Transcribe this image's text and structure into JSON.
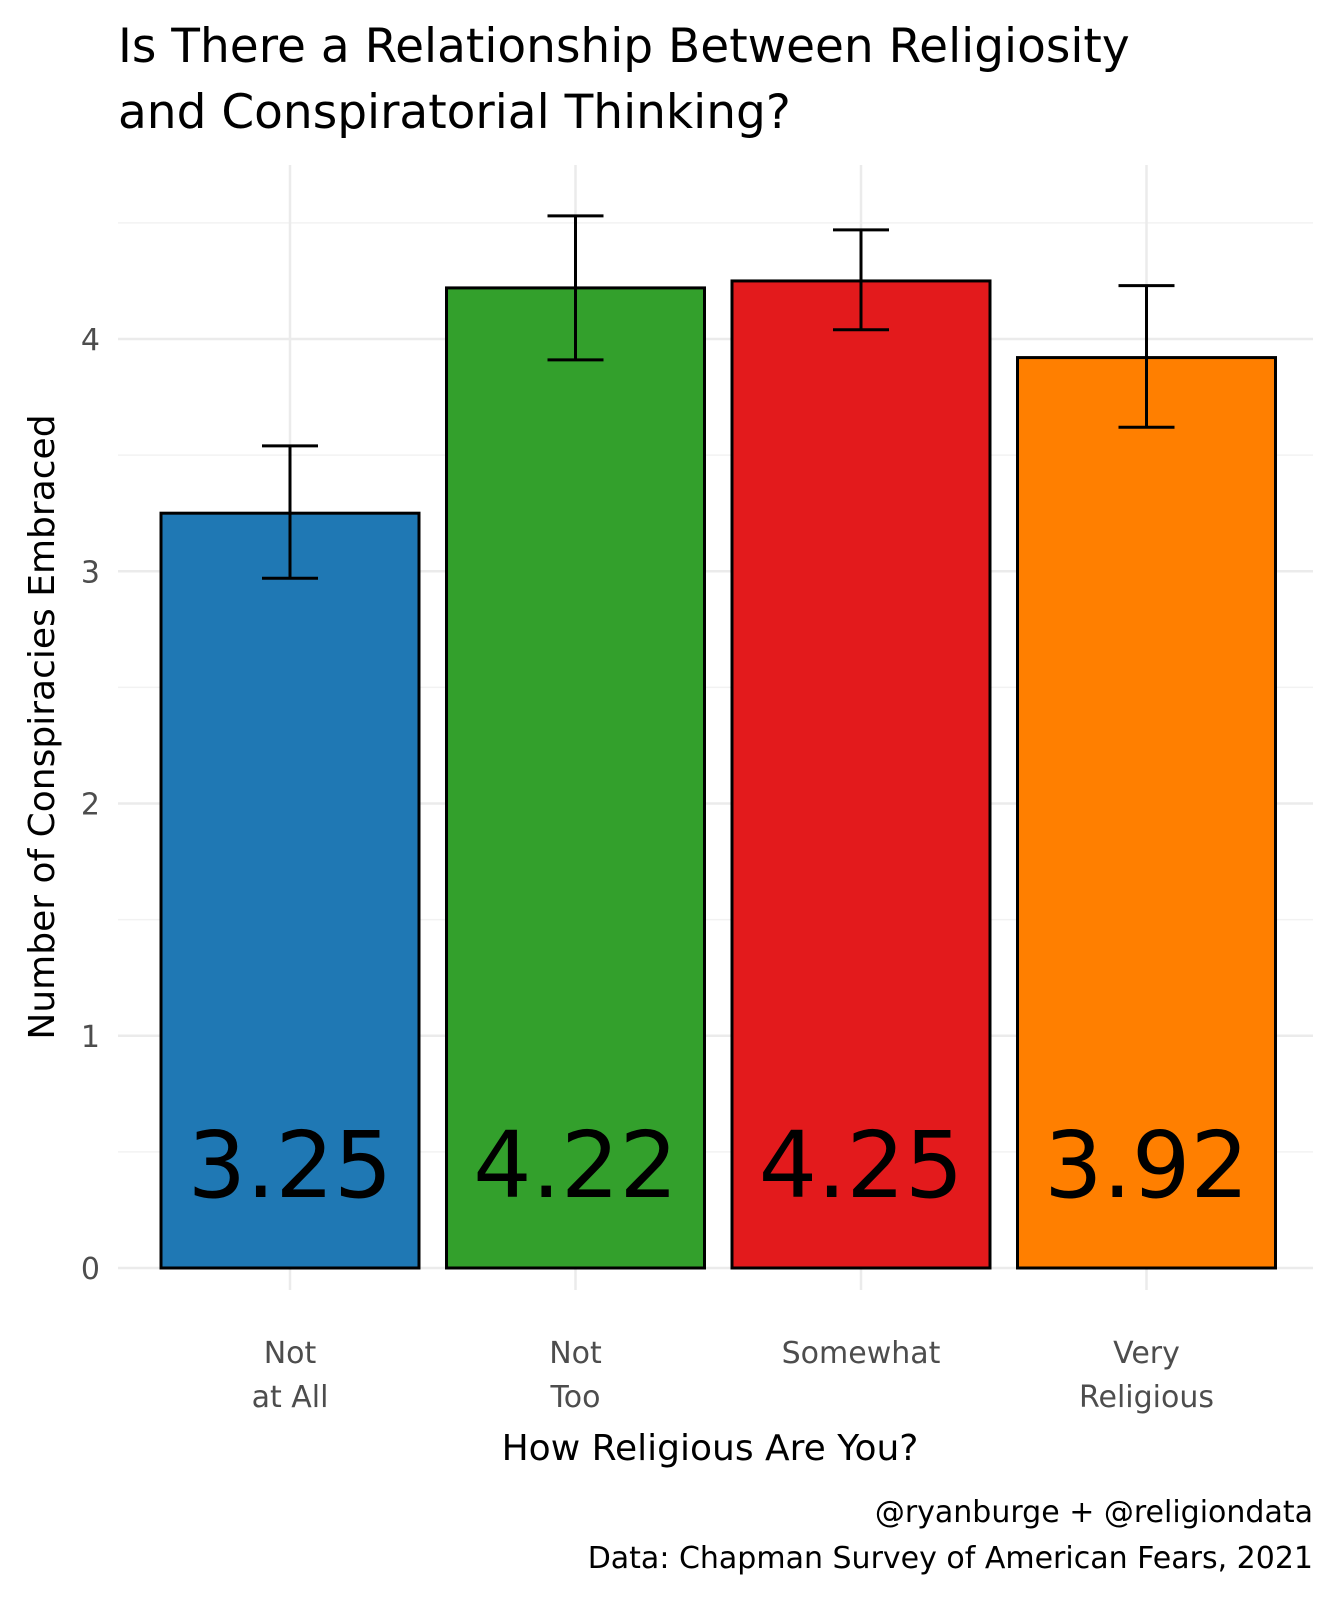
{
  "chart_data": {
    "type": "bar",
    "title": [
      "Is There a Relationship Between Religiosity",
      "and Conspiratorial Thinking?"
    ],
    "xlabel": "How Religious Are You?",
    "ylabel": "Number of Conspiracies Embraced",
    "categories": [
      {
        "lines": [
          "Not",
          "at All"
        ]
      },
      {
        "lines": [
          "Not",
          "Too"
        ]
      },
      {
        "lines": [
          "Somewhat"
        ]
      },
      {
        "lines": [
          "Very",
          "Religious"
        ]
      }
    ],
    "values": [
      3.25,
      4.22,
      4.25,
      3.92
    ],
    "value_labels": [
      "3.25",
      "4.22",
      "4.25",
      "3.92"
    ],
    "error_low": [
      2.97,
      3.91,
      4.04,
      3.62
    ],
    "error_high": [
      3.54,
      4.53,
      4.47,
      4.23
    ],
    "colors": [
      "#1f78b4",
      "#33a02c",
      "#e31a1c",
      "#ff7f00"
    ],
    "ylim": [
      0,
      4.75
    ],
    "yticks": [
      0,
      1,
      2,
      3,
      4
    ],
    "ytick_labels": [
      "0",
      "1",
      "2",
      "3",
      "4"
    ],
    "grid": true,
    "caption": [
      "@ryanburge + @religiondata",
      "Data: Chapman Survey of American Fears, 2021"
    ]
  }
}
